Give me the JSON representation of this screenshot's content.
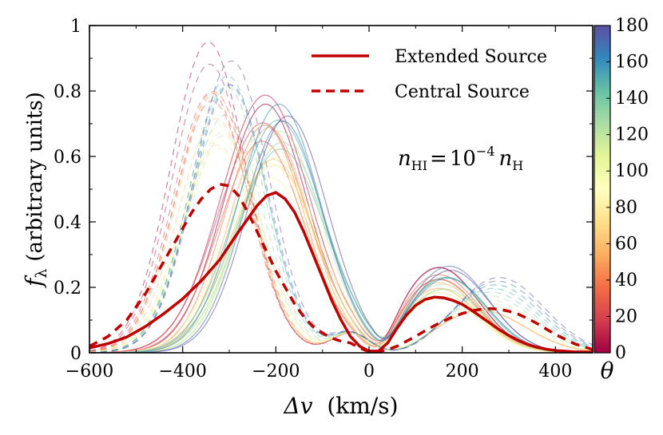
{
  "chart_data": {
    "type": "line",
    "title": "",
    "xlabel": "Δv (km/s)",
    "xlabel_symbol": "Δv",
    "xlabel_units": "(km/s)",
    "ylabel": "fλ (arbitrary units)",
    "ylabel_symbol": "f",
    "ylabel_subscript": "λ",
    "ylabel_units": "(arbitrary units)",
    "xlim": [
      -600,
      480
    ],
    "ylim": [
      0,
      1
    ],
    "xticks": [
      -600,
      -400,
      -200,
      0,
      200,
      400
    ],
    "xtick_labels": [
      "−600",
      "−400",
      "−200",
      "0",
      "200",
      "400"
    ],
    "yticks": [
      0,
      0.2,
      0.4,
      0.6,
      0.8,
      1
    ],
    "ytick_labels": [
      "0",
      "0.2",
      "0.4",
      "0.6",
      "0.8",
      "1"
    ],
    "annotation": {
      "lhs": "n",
      "lhs_sub": "HI",
      "equals": "=",
      "base": "10",
      "exponent": "−4",
      "rhs": "n",
      "rhs_sub": "H"
    },
    "legend": {
      "position": "top-right",
      "entries": [
        {
          "label": "Extended Source",
          "style": "solid",
          "color": "#c00000"
        },
        {
          "label": "Central Source",
          "style": "dashed",
          "color": "#c00000"
        }
      ]
    },
    "colorbar": {
      "label": "θ",
      "min": 0,
      "max": 180,
      "ticks": [
        0,
        20,
        40,
        60,
        80,
        100,
        120,
        140,
        160,
        180
      ],
      "tick_labels": [
        "0",
        "20",
        "40",
        "60",
        "80",
        "100",
        "120",
        "140",
        "160",
        "180"
      ],
      "colormap": [
        "#9e0142",
        "#d53e4f",
        "#f46d43",
        "#fdae61",
        "#fee08b",
        "#ffffbf",
        "#e6f598",
        "#abdda4",
        "#66c2a5",
        "#3288bd",
        "#5e4fa2"
      ]
    },
    "series": [
      {
        "name": "Extended Source",
        "style": "solid",
        "color": "#c00000",
        "x": [
          -600,
          -560,
          -520,
          -480,
          -440,
          -400,
          -360,
          -320,
          -280,
          -240,
          -220,
          -200,
          -180,
          -160,
          -140,
          -120,
          -100,
          -80,
          -60,
          -40,
          -20,
          0,
          20,
          40,
          60,
          80,
          100,
          120,
          140,
          160,
          180,
          200,
          220,
          240,
          260,
          280,
          300,
          320,
          340,
          360,
          380,
          400,
          440,
          480
        ],
        "y": [
          0.015,
          0.028,
          0.048,
          0.08,
          0.12,
          0.165,
          0.22,
          0.285,
          0.37,
          0.45,
          0.48,
          0.49,
          0.47,
          0.43,
          0.37,
          0.3,
          0.23,
          0.16,
          0.1,
          0.05,
          0.02,
          0.005,
          0.005,
          0.03,
          0.075,
          0.115,
          0.145,
          0.163,
          0.17,
          0.168,
          0.16,
          0.148,
          0.13,
          0.11,
          0.09,
          0.07,
          0.053,
          0.038,
          0.026,
          0.017,
          0.011,
          0.007,
          0.003,
          0.002
        ]
      },
      {
        "name": "Central Source",
        "style": "dashed",
        "color": "#c00000",
        "x": [
          -600,
          -560,
          -520,
          -480,
          -440,
          -400,
          -380,
          -360,
          -340,
          -320,
          -300,
          -280,
          -260,
          -240,
          -220,
          -200,
          -180,
          -160,
          -140,
          -120,
          -100,
          -80,
          -60,
          -40,
          -20,
          0,
          20,
          40,
          60,
          80,
          100,
          120,
          140,
          160,
          180,
          200,
          220,
          240,
          260,
          280,
          300,
          320,
          340,
          360,
          380,
          400,
          440,
          480
        ],
        "y": [
          0.02,
          0.05,
          0.1,
          0.18,
          0.28,
          0.38,
          0.43,
          0.47,
          0.5,
          0.515,
          0.51,
          0.48,
          0.43,
          0.37,
          0.31,
          0.25,
          0.2,
          0.15,
          0.11,
          0.08,
          0.06,
          0.045,
          0.035,
          0.03,
          0.015,
          0.003,
          0.003,
          0.01,
          0.02,
          0.035,
          0.05,
          0.067,
          0.083,
          0.097,
          0.11,
          0.12,
          0.128,
          0.133,
          0.135,
          0.133,
          0.127,
          0.118,
          0.105,
          0.09,
          0.073,
          0.056,
          0.028,
          0.01
        ]
      }
    ]
  }
}
